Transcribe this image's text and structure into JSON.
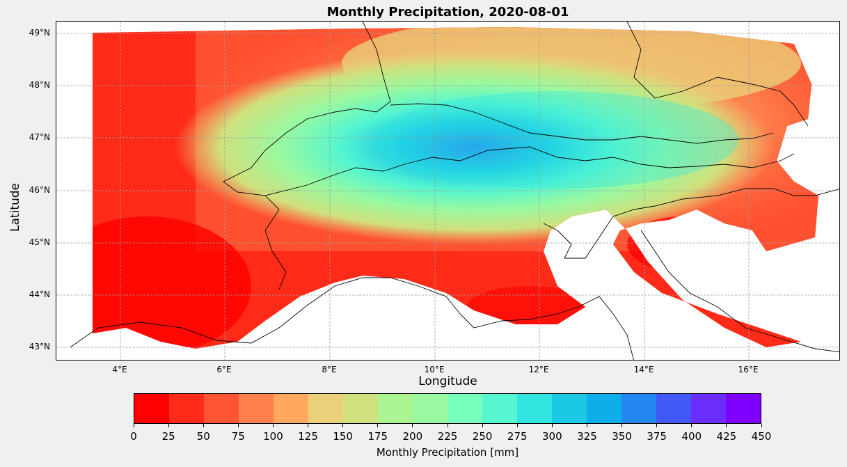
{
  "title": "Monthly Precipitation, 2020-08-01",
  "chart_data": {
    "type": "heatmap",
    "title": "Monthly Precipitation, 2020-08-01",
    "xlabel": "Longitude",
    "ylabel": "Latitude",
    "xlim": [
      2.8,
      17.8
    ],
    "ylim": [
      42.75,
      49.25
    ],
    "x_ticks": [
      4,
      6,
      8,
      10,
      12,
      14,
      16
    ],
    "x_tick_labels": [
      "4°E",
      "6°E",
      "8°E",
      "10°E",
      "12°E",
      "14°E",
      "16°E"
    ],
    "y_ticks": [
      43,
      44,
      45,
      46,
      47,
      48,
      49
    ],
    "y_tick_labels": [
      "43°N",
      "44°N",
      "45°N",
      "46°N",
      "47°N",
      "48°N",
      "49°N"
    ],
    "grid": true,
    "colorbar": {
      "label": "Monthly Precipitation [mm]",
      "bounds": [
        0,
        25,
        50,
        75,
        100,
        125,
        150,
        175,
        200,
        225,
        250,
        275,
        300,
        325,
        350,
        375,
        400,
        425,
        450
      ],
      "tick_labels": [
        "0",
        "25",
        "50",
        "75",
        "100",
        "125",
        "150",
        "175",
        "200",
        "225",
        "250",
        "275",
        "300",
        "325",
        "350",
        "375",
        "400",
        "425",
        "450"
      ],
      "colors": [
        "#ff0000",
        "#ff2b18",
        "#ff5533",
        "#ff804c",
        "#ffa95f",
        "#ead079",
        "#d0e07d",
        "#aaf591",
        "#9af9a0",
        "#78ffbb",
        "#56f6d0",
        "#32e4df",
        "#1bc9e5",
        "#0daeea",
        "#2386f1",
        "#4358f8",
        "#6b2dfb",
        "#8000ff"
      ],
      "orientation": "horizontal"
    },
    "data_region": {
      "lon": [
        3.5,
        17.2
      ],
      "lat": [
        42.95,
        49.1
      ]
    }
  }
}
